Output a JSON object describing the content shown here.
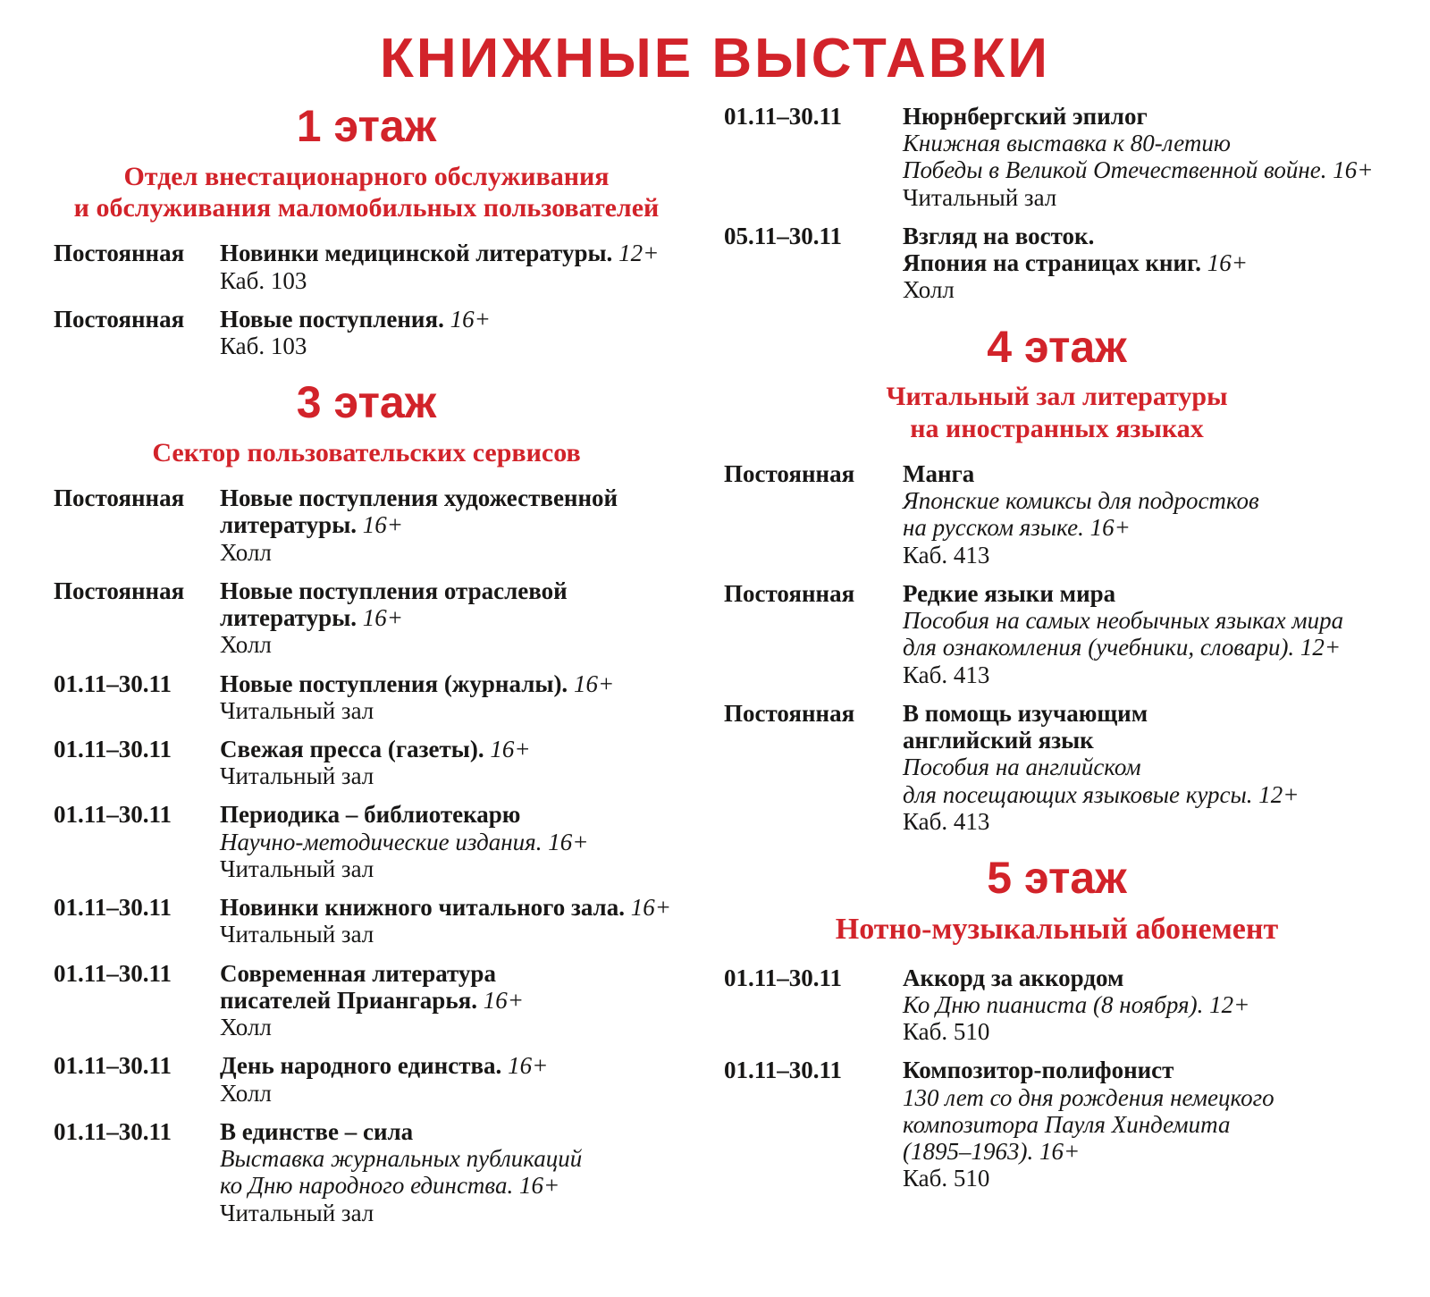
{
  "accent_color": "#d2232a",
  "title": "КНИЖНЫЕ ВЫСТАВКИ",
  "left": {
    "sections": [
      {
        "floor": "1 этаж",
        "department": [
          "Отдел внестационарного обслуживания",
          "и обслуживания маломобильных пользователей"
        ],
        "entries": [
          {
            "date": "Постоянная",
            "title_lines": [
              "Новинки медицинской литературы."
            ],
            "age": "12+",
            "location": "Каб. 103"
          },
          {
            "date": "Постоянная",
            "title_lines": [
              "Новые поступления."
            ],
            "age": "16+",
            "location": "Каб. 103"
          }
        ]
      },
      {
        "floor": "3 этаж",
        "department": [
          "Сектор пользовательских сервисов"
        ],
        "entries": [
          {
            "date": "Постоянная",
            "title_lines": [
              "Новые поступления художественной",
              "литературы."
            ],
            "age": "16+",
            "location": "Холл"
          },
          {
            "date": "Постоянная",
            "title_lines": [
              "Новые поступления отраслевой",
              "литературы."
            ],
            "age": "16+",
            "location": "Холл"
          },
          {
            "date": "01.11–30.11",
            "title_lines": [
              "Новые поступления (журналы)."
            ],
            "age": "16+",
            "location": "Читальный зал"
          },
          {
            "date": "01.11–30.11",
            "title_lines": [
              "Свежая пресса (газеты)."
            ],
            "age": "16+",
            "location": "Читальный зал"
          },
          {
            "date": "01.11–30.11",
            "title_lines": [
              "Периодика – библиотекарю"
            ],
            "details": [
              "Научно-методические издания. 16+"
            ],
            "location": "Читальный зал"
          },
          {
            "date": "01.11–30.11",
            "title_lines": [
              "Новинки книжного читального зала."
            ],
            "age": "16+",
            "location": "Читальный зал"
          },
          {
            "date": "01.11–30.11",
            "title_lines": [
              "Современная литература",
              "писателей Приангарья."
            ],
            "age": "16+",
            "location": "Холл"
          },
          {
            "date": "01.11–30.11",
            "title_lines": [
              "День народного единства."
            ],
            "age": "16+",
            "location": "Холл"
          },
          {
            "date": "01.11–30.11",
            "title_lines": [
              "В единстве – сила"
            ],
            "details": [
              "Выставка журнальных публикаций",
              "ко Дню народного единства. 16+"
            ],
            "location": "Читальный зал"
          }
        ]
      }
    ]
  },
  "right": {
    "sections": [
      {
        "entries": [
          {
            "date": "01.11–30.11",
            "title_lines": [
              "Нюрнбергский эпилог"
            ],
            "details": [
              "Книжная выставка к 80-летию",
              "Победы в Великой Отечественной войне. 16+"
            ],
            "location": "Читальный зал"
          },
          {
            "date": "05.11–30.11",
            "title_lines": [
              "Взгляд на восток.",
              "Япония на страницах книг."
            ],
            "age": "16+",
            "location": "Холл"
          }
        ]
      },
      {
        "floor": "4 этаж",
        "department": [
          "Читальный зал литературы",
          "на иностранных языках"
        ],
        "entries": [
          {
            "date": "Постоянная",
            "title_lines": [
              "Манга"
            ],
            "details": [
              "Японские комиксы для подростков",
              "на русском языке. 16+"
            ],
            "location": "Каб. 413"
          },
          {
            "date": "Постоянная",
            "title_lines": [
              "Редкие языки мира"
            ],
            "details": [
              "Пособия на самых необычных языках мира",
              "для ознакомления (учебники, словари). 12+"
            ],
            "location": "Каб. 413"
          },
          {
            "date": "Постоянная",
            "title_lines": [
              "В помощь изучающим",
              "английский язык"
            ],
            "details": [
              "Пособия на английском",
              "для посещающих языковые курсы. 12+"
            ],
            "location": "Каб. 413"
          }
        ]
      },
      {
        "floor": "5 этаж",
        "department": [
          "Нотно-музыкальный абонемент"
        ],
        "entries": [
          {
            "date": "01.11–30.11",
            "title_lines": [
              "Аккорд за аккордом"
            ],
            "details": [
              "Ко Дню пианиста (8 ноября). 12+"
            ],
            "location": "Каб. 510"
          },
          {
            "date": "01.11–30.11",
            "title_lines": [
              "Композитор-полифонист"
            ],
            "details": [
              "130 лет со дня рождения немецкого",
              "композитора Пауля Хиндемита",
              "(1895–1963). 16+"
            ],
            "location": "Каб. 510"
          }
        ]
      }
    ]
  }
}
